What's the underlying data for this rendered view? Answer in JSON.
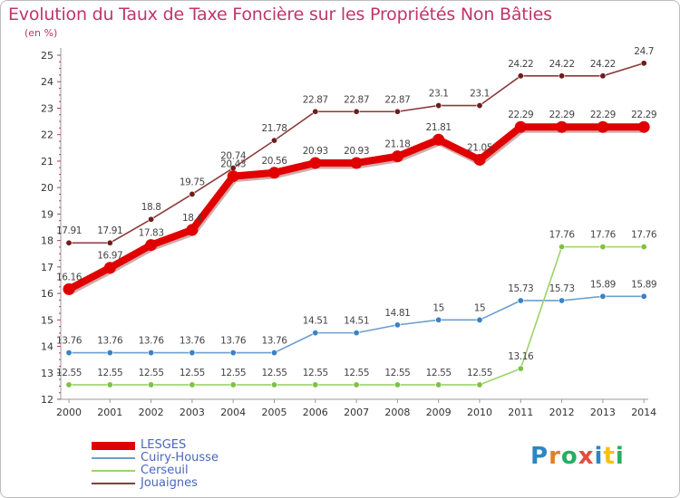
{
  "title": "Evolution du Taux de Taxe Foncière sur les Propriétés Non Bâties",
  "subtitle": "(en %)",
  "logo": {
    "text": "Proxiti",
    "letter_colors": [
      "#2e86c1",
      "#e67e22",
      "#27ae60",
      "#e74c3c",
      "#2e86c1",
      "#f1c40f",
      "#27ae60"
    ]
  },
  "chart_data": {
    "type": "line",
    "x": [
      "2000",
      "2001",
      "2002",
      "2003",
      "2004",
      "2005",
      "2006",
      "2007",
      "2008",
      "2009",
      "2010",
      "2011",
      "2012",
      "2013",
      "2014"
    ],
    "ylim": [
      12,
      25
    ],
    "yticks": [
      "12",
      "13",
      "14",
      "15",
      "16",
      "17",
      "18",
      "19",
      "20",
      "21",
      "22",
      "23",
      "24",
      "25"
    ],
    "grid": false,
    "legend_position": "bottom-left",
    "series": [
      {
        "name": "LESGES",
        "color": "#e00000",
        "emphasis": true,
        "values": [
          16.16,
          16.97,
          17.83,
          18.4,
          20.43,
          20.56,
          20.93,
          20.93,
          21.18,
          21.81,
          21.05,
          22.29,
          22.29,
          22.29,
          22.29
        ],
        "labels": [
          "16.16",
          "16.97",
          "17.83",
          "18.4",
          "20.43",
          "20.56",
          "20.93",
          "20.93",
          "21.18",
          "21.81",
          "21.05",
          "22.29",
          "22.29",
          "22.29",
          "22.29"
        ]
      },
      {
        "name": "Cuiry-Housse",
        "color": "#6b9fcf",
        "marker": "#3a82c4",
        "values": [
          13.76,
          13.76,
          13.76,
          13.76,
          13.76,
          13.76,
          14.51,
          14.51,
          14.81,
          15,
          15,
          15.73,
          15.73,
          15.89,
          15.89
        ],
        "labels": [
          "13.76",
          "13.76",
          "13.76",
          "13.76",
          "13.76",
          "13.76",
          "14.51",
          "14.51",
          "14.81",
          "15",
          "15",
          "15.73",
          "15.73",
          "15.89",
          "15.89"
        ]
      },
      {
        "name": "Cerseuil",
        "color": "#9ad46a",
        "marker": "#7dc242",
        "values": [
          12.55,
          12.55,
          12.55,
          12.55,
          12.55,
          12.55,
          12.55,
          12.55,
          12.55,
          12.55,
          12.55,
          13.16,
          17.76,
          17.76,
          17.76
        ],
        "labels": [
          "12.55",
          "12.55",
          "12.55",
          "12.55",
          "12.55",
          "12.55",
          "12.55",
          "12.55",
          "12.55",
          "12.55",
          "12.55",
          "13.16",
          "17.76",
          "17.76",
          "17.76"
        ]
      },
      {
        "name": "Jouaignes",
        "color": "#8b3a3a",
        "marker": "#6e1d1d",
        "values": [
          17.91,
          17.91,
          18.8,
          19.75,
          20.74,
          21.78,
          22.87,
          22.87,
          22.87,
          23.1,
          23.1,
          24.22,
          24.22,
          24.22,
          24.7
        ],
        "labels": [
          "17.91",
          "17.91",
          "18.8",
          "19.75",
          "20.74",
          "21.78",
          "22.87",
          "22.87",
          "22.87",
          "23.1",
          "23.1",
          "24.22",
          "24.22",
          "24.22",
          "24.7"
        ]
      }
    ]
  }
}
